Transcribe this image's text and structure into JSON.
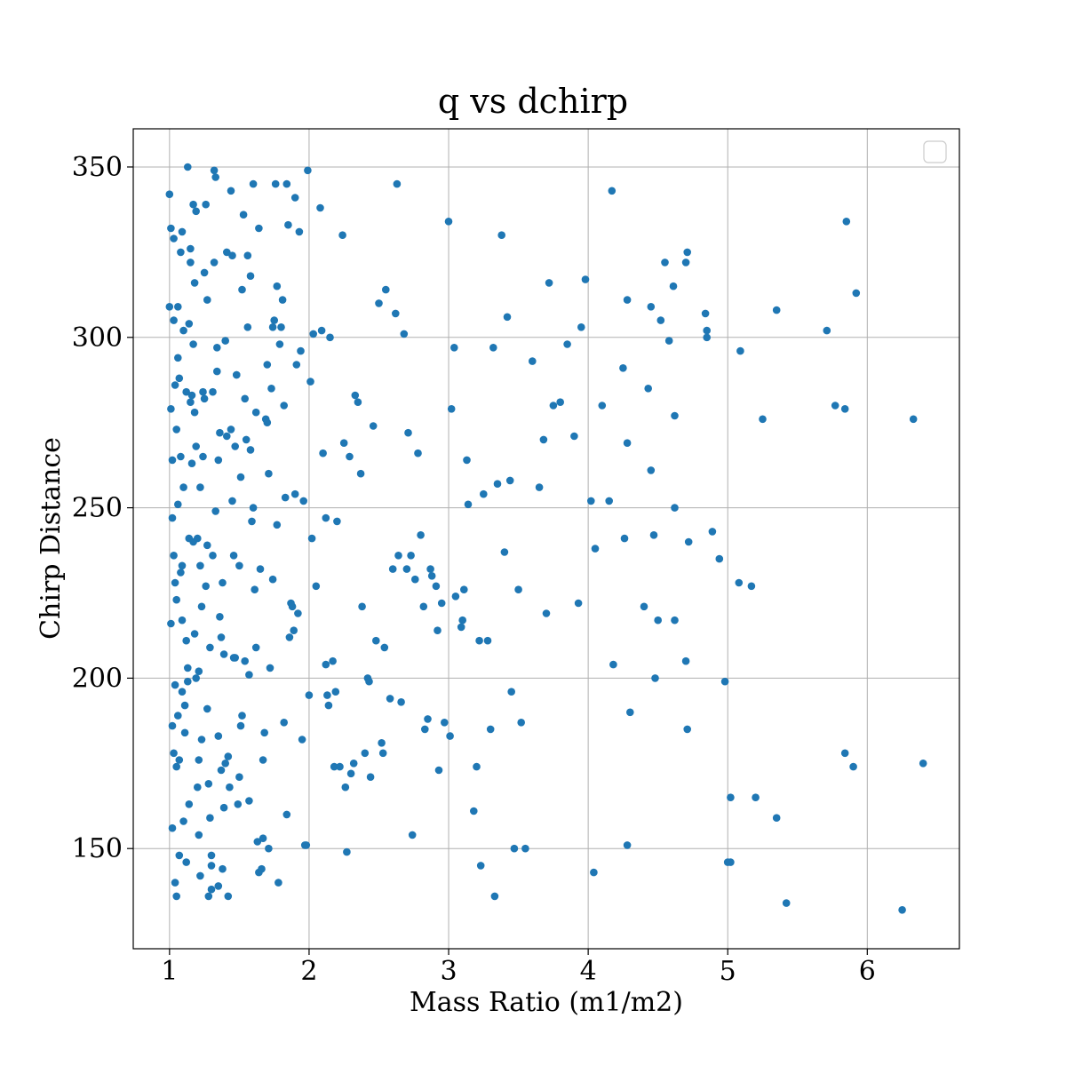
{
  "chart_data": {
    "type": "scatter",
    "title": "q vs dchirp",
    "xlabel": "Mass Ratio (m1/m2)",
    "ylabel": "Chirp Distance",
    "xlim": [
      0.74,
      6.66
    ],
    "ylim": [
      120.6,
      361.2
    ],
    "xticks": [
      1,
      2,
      3,
      4,
      5,
      6
    ],
    "yticks": [
      150,
      200,
      250,
      300,
      350
    ],
    "grid": true,
    "legend": "top-right, empty",
    "marker_color": "#1f77b4",
    "x": [
      1.0,
      1.02,
      1.04,
      1.05,
      1.03,
      1.08,
      1.06,
      1.1,
      1.12,
      1.15,
      1.18,
      1.2,
      1.22,
      1.26,
      1.3,
      1.34,
      1.38,
      1.42,
      1.47,
      1.52,
      1.57,
      1.63,
      1.7,
      1.77,
      1.85,
      1.01,
      1.04,
      1.07,
      1.09,
      1.13,
      1.16,
      1.19,
      1.23,
      1.27,
      1.31,
      1.35,
      1.4,
      1.45,
      1.5,
      1.56,
      1.62,
      1.69,
      1.76,
      1.84,
      1.92,
      1.02,
      1.05,
      1.08,
      1.11,
      1.14,
      1.17,
      1.21,
      1.25,
      1.29,
      1.33,
      1.37,
      1.41,
      1.46,
      1.51,
      1.58,
      1.64,
      1.71,
      1.79,
      1.88,
      1.96,
      1.03,
      1.06,
      1.09,
      1.12,
      1.15,
      1.19,
      1.24,
      1.28,
      1.32,
      1.36,
      1.43,
      1.48,
      1.54,
      1.6,
      1.67,
      1.74,
      1.82,
      1.9,
      1.98,
      2.05,
      1.01,
      1.04,
      1.07,
      1.1,
      1.13,
      1.18,
      1.22,
      1.27,
      1.31,
      1.39,
      1.44,
      1.49,
      1.55,
      1.61,
      1.68,
      1.75,
      1.83,
      1.91,
      2.0,
      2.1,
      1.02,
      1.06,
      1.09,
      1.14,
      1.17,
      1.21,
      1.26,
      1.3,
      1.35,
      1.4,
      1.47,
      1.53,
      1.59,
      1.66,
      1.73,
      1.81,
      1.89,
      1.97,
      2.08,
      2.18,
      1.03,
      1.05,
      1.08,
      1.12,
      1.16,
      1.2,
      1.25,
      1.29,
      1.34,
      1.38,
      1.45,
      1.51,
      1.57,
      1.65,
      1.72,
      1.8,
      1.87,
      1.95,
      2.03,
      2.14,
      1.0,
      1.04,
      1.07,
      1.11,
      1.15,
      1.19,
      1.23,
      1.28,
      1.33,
      1.37,
      1.42,
      1.5,
      1.56,
      1.62,
      1.7,
      1.78,
      1.86,
      1.94,
      2.02,
      2.12,
      1.02,
      1.05,
      1.09,
      1.13,
      1.18,
      1.22,
      1.27,
      1.32,
      1.36,
      1.41,
      1.46,
      1.52,
      1.58,
      1.64,
      1.71,
      1.77,
      1.84,
      1.93,
      2.01,
      2.09,
      1.01,
      1.03,
      1.06,
      1.1,
      1.14,
      1.17,
      1.21,
      1.24,
      1.3,
      1.35,
      1.39,
      1.44,
      1.48,
      1.54,
      1.6,
      1.67,
      1.74,
      1.82,
      1.9,
      1.99,
      2.15,
      2.2,
      2.27,
      2.33,
      2.4,
      2.48,
      2.55,
      2.63,
      2.71,
      2.8,
      2.88,
      2.97,
      3.05,
      3.14,
      3.23,
      3.33,
      3.42,
      3.52,
      2.17,
      2.24,
      2.3,
      2.37,
      2.44,
      2.52,
      2.6,
      2.68,
      2.76,
      2.85,
      2.93,
      3.02,
      3.11,
      3.2,
      3.3,
      3.4,
      3.5,
      2.12,
      2.19,
      2.26,
      2.35,
      2.42,
      2.5,
      2.58,
      2.66,
      2.74,
      2.83,
      2.91,
      3.0,
      3.09,
      3.18,
      3.28,
      3.38,
      3.47,
      2.22,
      2.29,
      2.38,
      2.46,
      2.54,
      2.62,
      2.7,
      2.78,
      2.87,
      2.95,
      3.04,
      3.13,
      3.25,
      3.35,
      3.45,
      2.13,
      2.25,
      2.32,
      2.43,
      2.53,
      2.64,
      2.73,
      2.82,
      2.92,
      3.01,
      3.1,
      3.22,
      3.32,
      3.44,
      3.55,
      3.68,
      3.8,
      3.93,
      4.05,
      4.18,
      4.3,
      4.45,
      4.58,
      4.72,
      4.85,
      5.0,
      3.6,
      3.72,
      3.85,
      3.98,
      4.1,
      4.25,
      4.4,
      4.55,
      3.65,
      3.75,
      3.9,
      4.02,
      4.28,
      4.45,
      4.62,
      3.7,
      3.95,
      4.15,
      4.5,
      4.7,
      4.17,
      5.85,
      4.71,
      4.61,
      5.92,
      5.35,
      4.84,
      5.71,
      4.85,
      4.52,
      5.09,
      4.43,
      5.77,
      5.84,
      5.25,
      6.33,
      4.28,
      4.62,
      4.89,
      4.94,
      4.47,
      4.26,
      5.08,
      5.17,
      4.62,
      4.7,
      4.48,
      4.98,
      4.71,
      5.84,
      5.9,
      6.4,
      5.02,
      5.2,
      5.35,
      4.28,
      5.02,
      5.42,
      6.25,
      4.04
    ],
    "y": [
      342,
      247,
      198,
      273,
      305,
      231,
      189,
      158,
      284,
      322,
      213,
      168,
      256,
      339,
      145,
      297,
      228,
      177,
      268,
      314,
      201,
      152,
      292,
      245,
      333,
      216,
      286,
      148,
      331,
      203,
      263,
      337,
      182,
      311,
      236,
      139,
      299,
      252,
      171,
      324,
      209,
      276,
      345,
      160,
      219,
      264,
      136,
      325,
      192,
      241,
      298,
      154,
      282,
      209,
      347,
      173,
      271,
      236,
      186,
      318,
      143,
      260,
      298,
      221,
      252,
      178,
      309,
      233,
      146,
      281,
      200,
      265,
      136,
      322,
      218,
      168,
      289,
      205,
      345,
      176,
      229,
      280,
      341,
      151,
      227,
      332,
      228,
      176,
      256,
      199,
      316,
      142,
      239,
      284,
      207,
      343,
      163,
      270,
      226,
      184,
      305,
      253,
      292,
      195,
      266,
      156,
      294,
      217,
      304,
      339,
      176,
      227,
      148,
      264,
      175,
      206,
      336,
      246,
      144,
      285,
      311,
      214,
      151,
      338,
      174,
      236,
      174,
      265,
      211,
      283,
      241,
      319,
      159,
      290,
      144,
      324,
      259,
      164,
      232,
      203,
      303,
      222,
      182,
      301,
      192,
      309,
      140,
      288,
      184,
      326,
      268,
      221,
      169,
      249,
      212,
      136,
      233,
      303,
      278,
      275,
      140,
      212,
      296,
      241,
      204,
      186,
      223,
      196,
      350,
      278,
      233,
      191,
      349,
      272,
      325,
      206,
      189,
      267,
      332,
      150,
      315,
      345,
      331,
      287,
      302,
      279,
      329,
      251,
      302,
      163,
      240,
      202,
      284,
      138,
      183,
      162,
      273,
      289,
      282,
      250,
      153,
      303,
      187,
      254,
      349,
      300,
      246,
      149,
      283,
      178,
      211,
      314,
      345,
      272,
      242,
      230,
      187,
      224,
      251,
      145,
      136,
      306,
      187,
      205,
      330,
      172,
      260,
      171,
      181,
      232,
      301,
      229,
      188,
      173,
      279,
      226,
      174,
      185,
      237,
      226,
      247,
      196,
      168,
      281,
      200,
      310,
      194,
      193,
      154,
      185,
      227,
      334,
      215,
      161,
      211,
      330,
      150,
      174,
      265,
      221,
      274,
      209,
      307,
      232,
      266,
      232,
      222,
      297,
      264,
      254,
      257,
      196,
      195,
      269,
      175,
      199,
      178,
      236,
      236,
      221,
      214,
      183,
      217,
      211,
      297,
      258,
      150,
      270,
      281,
      222,
      238,
      204,
      190,
      261,
      299,
      240,
      300,
      146,
      293,
      316,
      298,
      317,
      280,
      291,
      221,
      322,
      256,
      280,
      271,
      252,
      311,
      309,
      277,
      219,
      303,
      252,
      217,
      322,
      343,
      334,
      325,
      315,
      313,
      308,
      307,
      302,
      302,
      305,
      296,
      285,
      280,
      279,
      276,
      276,
      269,
      250,
      243,
      235,
      242,
      241,
      228,
      227,
      217,
      205,
      200,
      199,
      185,
      178,
      174,
      175,
      165,
      165,
      159,
      151,
      146,
      134,
      132,
      143
    ]
  }
}
